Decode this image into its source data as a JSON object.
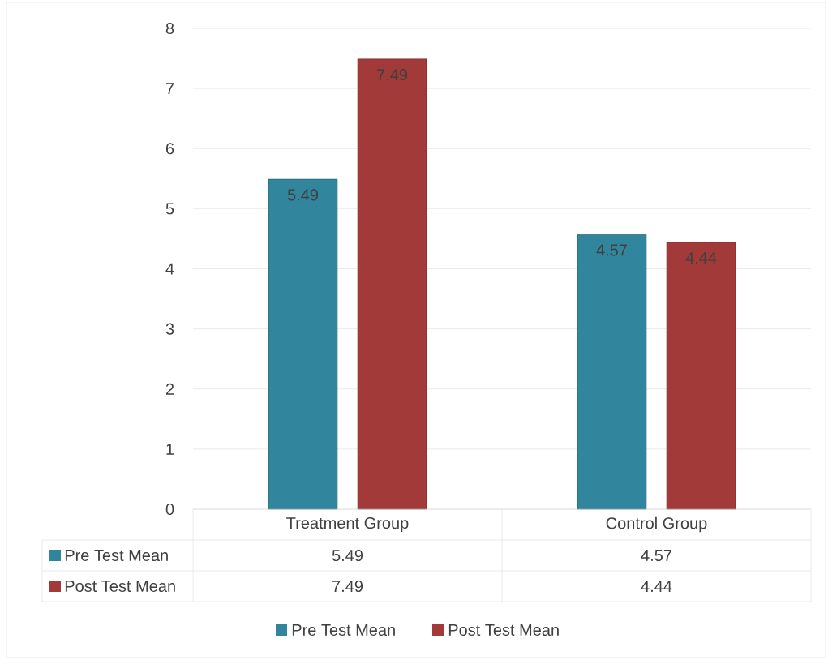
{
  "chart_data": {
    "type": "bar",
    "categories": [
      "Treatment Group",
      "Control Group"
    ],
    "series": [
      {
        "name": "Pre Test Mean",
        "color": "#31859c",
        "values": [
          5.49,
          4.57
        ],
        "value_labels": [
          "5.49",
          "4.57"
        ]
      },
      {
        "name": "Post Test Mean",
        "color": "#a33a3a",
        "values": [
          7.49,
          4.44
        ],
        "value_labels": [
          "7.49",
          "4.44"
        ]
      }
    ],
    "ylim": [
      0,
      8
    ],
    "yticks": [
      0,
      1,
      2,
      3,
      4,
      5,
      6,
      7,
      8
    ],
    "grid": "y",
    "legend": "bottom",
    "annotations": [
      "5.49",
      "4.57",
      "7.49",
      "4.44"
    ]
  }
}
